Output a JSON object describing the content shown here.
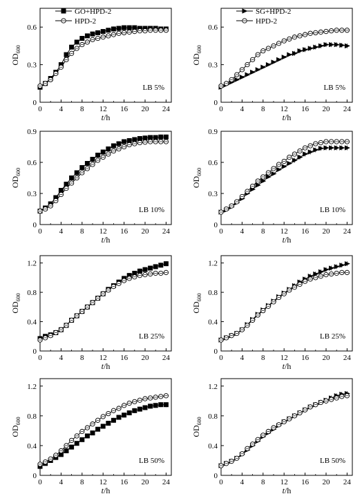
{
  "figure": {
    "colors": {
      "axis": "#000000",
      "ink": "#000000",
      "open_fill": "#ffffff"
    }
  },
  "chart_data": [
    {
      "type": "line",
      "panel": "GO+HPD-2 vs HPD-2, LB 5%",
      "xlabel": "t/h",
      "ylabel": "OD600",
      "xlim": [
        0,
        25
      ],
      "ylim": [
        0,
        0.75
      ],
      "xticks": [
        0,
        4,
        8,
        12,
        16,
        20,
        24
      ],
      "yticks": [
        0,
        0.3,
        0.6
      ],
      "annotation": "LB 5%",
      "legend": {
        "placement": "top-left",
        "entries": [
          "GO+HPD-2",
          "HPD-2"
        ]
      },
      "series": [
        {
          "name": "GO+HPD-2",
          "marker": "filled-square",
          "x": [
            0,
            1,
            2,
            3,
            4,
            5,
            6,
            7,
            8,
            9,
            10,
            11,
            12,
            13,
            14,
            15,
            16,
            17,
            18,
            19,
            20,
            21,
            22,
            23,
            24
          ],
          "y": [
            0.12,
            0.15,
            0.19,
            0.24,
            0.3,
            0.38,
            0.44,
            0.48,
            0.51,
            0.53,
            0.545,
            0.555,
            0.565,
            0.575,
            0.585,
            0.59,
            0.595,
            0.595,
            0.595,
            0.59,
            0.59,
            0.59,
            0.59,
            0.585,
            0.585
          ]
        },
        {
          "name": "HPD-2",
          "marker": "open-circle",
          "x": [
            0,
            1,
            2,
            3,
            4,
            5,
            6,
            7,
            8,
            9,
            10,
            11,
            12,
            13,
            14,
            15,
            16,
            17,
            18,
            19,
            20,
            21,
            22,
            23,
            24
          ],
          "y": [
            0.13,
            0.15,
            0.18,
            0.23,
            0.28,
            0.34,
            0.39,
            0.43,
            0.46,
            0.48,
            0.5,
            0.51,
            0.52,
            0.53,
            0.54,
            0.55,
            0.555,
            0.56,
            0.565,
            0.57,
            0.57,
            0.575,
            0.575,
            0.575,
            0.575
          ]
        }
      ]
    },
    {
      "type": "line",
      "panel": "SG+HPD-2 vs HPD-2, LB 5%",
      "xlabel": "t/h",
      "ylabel": "OD600",
      "xlim": [
        0,
        25
      ],
      "ylim": [
        0,
        0.75
      ],
      "xticks": [
        0,
        4,
        8,
        12,
        16,
        20,
        24
      ],
      "yticks": [
        0,
        0.3,
        0.6
      ],
      "annotation": "LB 5%",
      "legend": {
        "placement": "top-left",
        "entries": [
          "SG+HPD-2",
          "HPD-2"
        ]
      },
      "series": [
        {
          "name": "SG+HPD-2",
          "marker": "filled-right-triangle",
          "x": [
            0,
            1,
            2,
            3,
            4,
            5,
            6,
            7,
            8,
            9,
            10,
            11,
            12,
            13,
            14,
            15,
            16,
            17,
            18,
            19,
            20,
            21,
            22,
            23,
            24
          ],
          "y": [
            0.12,
            0.14,
            0.16,
            0.18,
            0.2,
            0.22,
            0.24,
            0.26,
            0.28,
            0.3,
            0.32,
            0.34,
            0.36,
            0.38,
            0.39,
            0.41,
            0.42,
            0.43,
            0.44,
            0.45,
            0.46,
            0.46,
            0.46,
            0.455,
            0.45
          ]
        },
        {
          "name": "HPD-2",
          "marker": "open-circle",
          "x": [
            0,
            1,
            2,
            3,
            4,
            5,
            6,
            7,
            8,
            9,
            10,
            11,
            12,
            13,
            14,
            15,
            16,
            17,
            18,
            19,
            20,
            21,
            22,
            23,
            24
          ],
          "y": [
            0.13,
            0.15,
            0.18,
            0.22,
            0.26,
            0.3,
            0.34,
            0.38,
            0.41,
            0.43,
            0.45,
            0.47,
            0.49,
            0.505,
            0.52,
            0.53,
            0.54,
            0.55,
            0.555,
            0.56,
            0.565,
            0.57,
            0.575,
            0.575,
            0.575
          ]
        }
      ]
    },
    {
      "type": "line",
      "panel": "GO+HPD-2 vs HPD-2, LB 10%",
      "xlabel": "t/h",
      "ylabel": "OD600",
      "xlim": [
        0,
        25
      ],
      "ylim": [
        0,
        0.9
      ],
      "xticks": [
        0,
        4,
        8,
        12,
        16,
        20,
        24
      ],
      "yticks": [
        0,
        0.3,
        0.6,
        0.9
      ],
      "annotation": "LB 10%",
      "series": [
        {
          "name": "GO+HPD-2",
          "marker": "filled-square",
          "x": [
            0,
            1,
            2,
            3,
            4,
            5,
            6,
            7,
            8,
            9,
            10,
            11,
            12,
            13,
            14,
            15,
            16,
            17,
            18,
            19,
            20,
            21,
            22,
            23,
            24
          ],
          "y": [
            0.13,
            0.16,
            0.2,
            0.26,
            0.33,
            0.39,
            0.45,
            0.5,
            0.55,
            0.59,
            0.63,
            0.67,
            0.7,
            0.73,
            0.76,
            0.78,
            0.8,
            0.81,
            0.82,
            0.83,
            0.835,
            0.84,
            0.84,
            0.845,
            0.845
          ]
        },
        {
          "name": "HPD-2",
          "marker": "open-circle",
          "x": [
            0,
            1,
            2,
            3,
            4,
            5,
            6,
            7,
            8,
            9,
            10,
            11,
            12,
            13,
            14,
            15,
            16,
            17,
            18,
            19,
            20,
            21,
            22,
            23,
            24
          ],
          "y": [
            0.13,
            0.15,
            0.18,
            0.23,
            0.29,
            0.35,
            0.4,
            0.45,
            0.5,
            0.54,
            0.58,
            0.62,
            0.65,
            0.68,
            0.71,
            0.73,
            0.75,
            0.77,
            0.78,
            0.79,
            0.795,
            0.8,
            0.8,
            0.8,
            0.8
          ]
        }
      ]
    },
    {
      "type": "line",
      "panel": "SG+HPD-2 vs HPD-2, LB 10%",
      "xlabel": "t/h",
      "ylabel": "OD600",
      "xlim": [
        0,
        25
      ],
      "ylim": [
        0,
        0.9
      ],
      "xticks": [
        0,
        4,
        8,
        12,
        16,
        20,
        24
      ],
      "yticks": [
        0,
        0.3,
        0.6,
        0.9
      ],
      "annotation": "LB 10%",
      "series": [
        {
          "name": "SG+HPD-2",
          "marker": "filled-right-triangle",
          "x": [
            0,
            1,
            2,
            3,
            4,
            5,
            6,
            7,
            8,
            9,
            10,
            11,
            12,
            13,
            14,
            15,
            16,
            17,
            18,
            19,
            20,
            21,
            22,
            23,
            24
          ],
          "y": [
            0.12,
            0.14,
            0.17,
            0.21,
            0.25,
            0.3,
            0.34,
            0.38,
            0.42,
            0.46,
            0.49,
            0.53,
            0.56,
            0.59,
            0.62,
            0.65,
            0.68,
            0.7,
            0.72,
            0.735,
            0.74,
            0.74,
            0.74,
            0.74,
            0.74
          ]
        },
        {
          "name": "HPD-2",
          "marker": "open-circle",
          "x": [
            0,
            1,
            2,
            3,
            4,
            5,
            6,
            7,
            8,
            9,
            10,
            11,
            12,
            13,
            14,
            15,
            16,
            17,
            18,
            19,
            20,
            21,
            22,
            23,
            24
          ],
          "y": [
            0.12,
            0.15,
            0.18,
            0.22,
            0.27,
            0.32,
            0.37,
            0.42,
            0.46,
            0.5,
            0.54,
            0.58,
            0.61,
            0.65,
            0.68,
            0.71,
            0.74,
            0.76,
            0.78,
            0.79,
            0.8,
            0.8,
            0.8,
            0.8,
            0.8
          ]
        }
      ]
    },
    {
      "type": "line",
      "panel": "GO+HPD-2 vs HPD-2, LB 25%",
      "xlabel": "t/h",
      "ylabel": "OD600",
      "xlim": [
        0,
        25
      ],
      "ylim": [
        0,
        1.3
      ],
      "xticks": [
        0,
        4,
        8,
        12,
        16,
        20,
        24
      ],
      "yticks": [
        0,
        0.4,
        0.8,
        1.2
      ],
      "annotation": "LB 25%",
      "series": [
        {
          "name": "GO+HPD-2",
          "marker": "filled-square",
          "x": [
            0,
            1,
            2,
            3,
            4,
            5,
            6,
            7,
            8,
            9,
            10,
            11,
            12,
            13,
            14,
            15,
            16,
            17,
            18,
            19,
            20,
            21,
            22,
            23,
            24
          ],
          "y": [
            0.17,
            0.2,
            0.22,
            0.25,
            0.29,
            0.35,
            0.42,
            0.48,
            0.54,
            0.6,
            0.66,
            0.72,
            0.78,
            0.84,
            0.89,
            0.94,
            0.99,
            1.03,
            1.06,
            1.09,
            1.11,
            1.13,
            1.15,
            1.17,
            1.19
          ]
        },
        {
          "name": "HPD-2",
          "marker": "open-circle",
          "x": [
            0,
            1,
            2,
            3,
            4,
            5,
            6,
            7,
            8,
            9,
            10,
            11,
            12,
            13,
            14,
            15,
            16,
            17,
            18,
            19,
            20,
            21,
            22,
            23,
            24
          ],
          "y": [
            0.15,
            0.18,
            0.21,
            0.25,
            0.29,
            0.35,
            0.42,
            0.48,
            0.54,
            0.6,
            0.66,
            0.72,
            0.78,
            0.83,
            0.88,
            0.92,
            0.96,
            0.99,
            1.01,
            1.03,
            1.04,
            1.05,
            1.06,
            1.06,
            1.07
          ]
        }
      ]
    },
    {
      "type": "line",
      "panel": "SG+HPD-2 vs HPD-2, LB 25%",
      "xlabel": "t/h",
      "ylabel": "OD600",
      "xlim": [
        0,
        25
      ],
      "ylim": [
        0,
        1.3
      ],
      "xticks": [
        0,
        4,
        8,
        12,
        16,
        20,
        24
      ],
      "yticks": [
        0,
        0.4,
        0.8,
        1.2
      ],
      "annotation": "LB 25%",
      "series": [
        {
          "name": "SG+HPD-2",
          "marker": "filled-right-triangle",
          "x": [
            0,
            1,
            2,
            3,
            4,
            5,
            6,
            7,
            8,
            9,
            10,
            11,
            12,
            13,
            14,
            15,
            16,
            17,
            18,
            19,
            20,
            21,
            22,
            23,
            24
          ],
          "y": [
            0.15,
            0.18,
            0.21,
            0.24,
            0.29,
            0.36,
            0.43,
            0.5,
            0.56,
            0.62,
            0.68,
            0.74,
            0.79,
            0.84,
            0.89,
            0.94,
            0.98,
            1.02,
            1.05,
            1.08,
            1.11,
            1.13,
            1.15,
            1.17,
            1.19
          ]
        },
        {
          "name": "HPD-2",
          "marker": "open-circle",
          "x": [
            0,
            1,
            2,
            3,
            4,
            5,
            6,
            7,
            8,
            9,
            10,
            11,
            12,
            13,
            14,
            15,
            16,
            17,
            18,
            19,
            20,
            21,
            22,
            23,
            24
          ],
          "y": [
            0.15,
            0.18,
            0.21,
            0.24,
            0.29,
            0.35,
            0.42,
            0.49,
            0.55,
            0.61,
            0.67,
            0.73,
            0.78,
            0.83,
            0.87,
            0.91,
            0.95,
            0.98,
            1.0,
            1.02,
            1.04,
            1.05,
            1.06,
            1.07,
            1.07
          ]
        }
      ]
    },
    {
      "type": "line",
      "panel": "GO+HPD-2 vs HPD-2, LB 50%",
      "xlabel": "t/h",
      "ylabel": "OD600",
      "xlim": [
        0,
        25
      ],
      "ylim": [
        0,
        1.3
      ],
      "xticks": [
        0,
        4,
        8,
        12,
        16,
        20,
        24
      ],
      "yticks": [
        0,
        0.4,
        0.8,
        1.2
      ],
      "annotation": "LB 50%",
      "series": [
        {
          "name": "GO+HPD-2",
          "marker": "filled-square",
          "x": [
            0,
            1,
            2,
            3,
            4,
            5,
            6,
            7,
            8,
            9,
            10,
            11,
            12,
            13,
            14,
            15,
            16,
            17,
            18,
            19,
            20,
            21,
            22,
            23,
            24
          ],
          "y": [
            0.12,
            0.16,
            0.2,
            0.24,
            0.28,
            0.33,
            0.38,
            0.43,
            0.48,
            0.53,
            0.57,
            0.62,
            0.66,
            0.7,
            0.74,
            0.78,
            0.81,
            0.84,
            0.87,
            0.89,
            0.91,
            0.93,
            0.94,
            0.95,
            0.95
          ]
        },
        {
          "name": "HPD-2",
          "marker": "open-circle",
          "x": [
            0,
            1,
            2,
            3,
            4,
            5,
            6,
            7,
            8,
            9,
            10,
            11,
            12,
            13,
            14,
            15,
            16,
            17,
            18,
            19,
            20,
            21,
            22,
            23,
            24
          ],
          "y": [
            0.15,
            0.18,
            0.22,
            0.27,
            0.33,
            0.4,
            0.47,
            0.53,
            0.59,
            0.64,
            0.69,
            0.74,
            0.79,
            0.83,
            0.87,
            0.9,
            0.94,
            0.97,
            0.99,
            1.01,
            1.03,
            1.04,
            1.05,
            1.06,
            1.07
          ]
        }
      ]
    },
    {
      "type": "line",
      "panel": "SG+HPD-2 vs HPD-2, LB 50%",
      "xlabel": "t/h",
      "ylabel": "OD600",
      "xlim": [
        0,
        25
      ],
      "ylim": [
        0,
        1.3
      ],
      "xticks": [
        0,
        4,
        8,
        12,
        16,
        20,
        24
      ],
      "yticks": [
        0,
        0.4,
        0.8,
        1.2
      ],
      "annotation": "LB 50%",
      "series": [
        {
          "name": "SG+HPD-2",
          "marker": "filled-right-triangle",
          "x": [
            0,
            1,
            2,
            3,
            4,
            5,
            6,
            7,
            8,
            9,
            10,
            11,
            12,
            13,
            14,
            15,
            16,
            17,
            18,
            19,
            20,
            21,
            22,
            23,
            24
          ],
          "y": [
            0.13,
            0.16,
            0.19,
            0.23,
            0.28,
            0.34,
            0.4,
            0.46,
            0.52,
            0.57,
            0.62,
            0.67,
            0.72,
            0.76,
            0.8,
            0.84,
            0.88,
            0.92,
            0.95,
            0.98,
            1.01,
            1.04,
            1.07,
            1.09,
            1.1
          ]
        },
        {
          "name": "HPD-2",
          "marker": "open-circle",
          "x": [
            0,
            1,
            2,
            3,
            4,
            5,
            6,
            7,
            8,
            9,
            10,
            11,
            12,
            13,
            14,
            15,
            16,
            17,
            18,
            19,
            20,
            21,
            22,
            23,
            24
          ],
          "y": [
            0.13,
            0.16,
            0.19,
            0.23,
            0.29,
            0.36,
            0.42,
            0.48,
            0.54,
            0.59,
            0.64,
            0.68,
            0.72,
            0.76,
            0.8,
            0.84,
            0.88,
            0.92,
            0.95,
            0.98,
            1.0,
            1.02,
            1.04,
            1.06,
            1.07
          ]
        }
      ]
    }
  ]
}
